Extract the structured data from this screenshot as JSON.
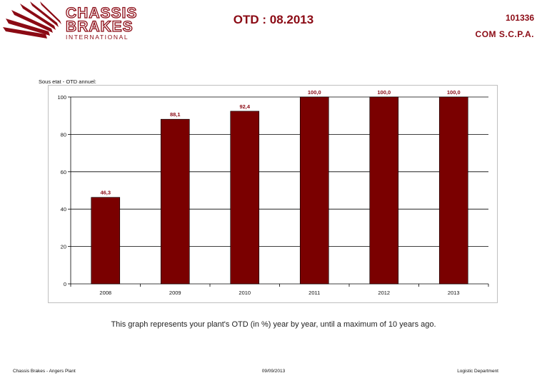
{
  "header": {
    "logo": {
      "line1": "CHASSIS",
      "line2": "BRAKES",
      "line3": "INTERNATIONAL"
    },
    "title": "OTD : 08.2013",
    "code": "101336",
    "company": "COM S.C.P.A."
  },
  "chart_label": "Sous etat - OTD annuel:",
  "caption": "This graph represents your plant's OTD (in %) year by year, until a maximum of 10 years ago.",
  "footer": {
    "left": "Chassis Brakes - Angers Plant",
    "center": "09/09/2013",
    "right": "Logistic Department"
  },
  "colors": {
    "brand": "#8b0a14",
    "bar": "#7a0000"
  },
  "chart_data": {
    "type": "bar",
    "title": "",
    "xlabel": "",
    "ylabel": "",
    "categories": [
      "2008",
      "2009",
      "2010",
      "2011",
      "2012",
      "2013"
    ],
    "values": [
      46.3,
      88.1,
      92.4,
      100.0,
      100.0,
      100.0
    ],
    "value_labels": [
      "46,3",
      "88,1",
      "92,4",
      "100,0",
      "100,0",
      "100,0"
    ],
    "ylim": [
      0,
      100
    ],
    "yticks": [
      0,
      20,
      40,
      60,
      80,
      100
    ],
    "grid": true,
    "legend": "none"
  }
}
